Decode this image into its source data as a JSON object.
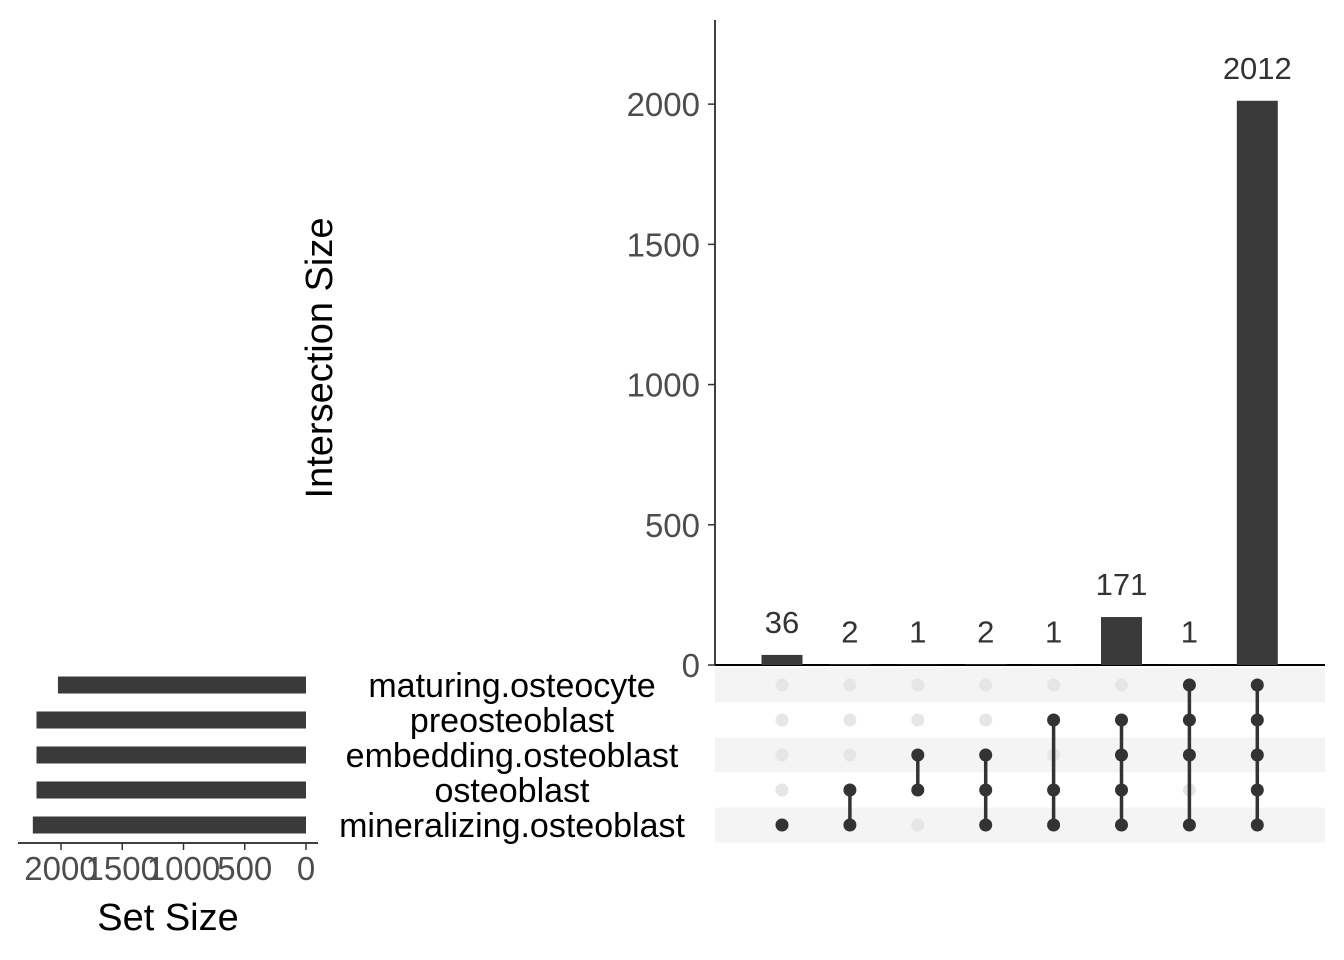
{
  "chart_data": {
    "type": "upset",
    "ylabel": "Intersection Size",
    "yticks": [
      0,
      500,
      1000,
      1500,
      2000
    ],
    "ylim": [
      0,
      2300
    ],
    "sets": [
      "maturing.osteocyte",
      "preosteoblast",
      "embedding.osteoblast",
      "osteoblast",
      "mineralizing.osteoblast"
    ],
    "set_sizes": [
      2025,
      2200,
      2200,
      2200,
      2230
    ],
    "set_size_label": "Set Size",
    "set_size_ticks": [
      2000,
      1500,
      1000,
      500,
      0
    ],
    "set_size_tick_labels": [
      "2000",
      "1500",
      "1000",
      "500",
      "0"
    ],
    "intersections": [
      {
        "value": 36,
        "label": "36",
        "members": [
          "mineralizing.osteoblast"
        ]
      },
      {
        "value": 2,
        "label": "2",
        "members": [
          "osteoblast",
          "mineralizing.osteoblast"
        ]
      },
      {
        "value": 1,
        "label": "1",
        "members": [
          "embedding.osteoblast",
          "osteoblast"
        ]
      },
      {
        "value": 2,
        "label": "2",
        "members": [
          "embedding.osteoblast",
          "osteoblast",
          "mineralizing.osteoblast"
        ]
      },
      {
        "value": 1,
        "label": "1",
        "members": [
          "preosteoblast",
          "osteoblast",
          "mineralizing.osteoblast"
        ]
      },
      {
        "value": 171,
        "label": "171",
        "members": [
          "preosteoblast",
          "embedding.osteoblast",
          "osteoblast",
          "mineralizing.osteoblast"
        ]
      },
      {
        "value": 1,
        "label": "1",
        "members": [
          "maturing.osteocyte",
          "preosteoblast",
          "embedding.osteoblast",
          "mineralizing.osteoblast"
        ]
      },
      {
        "value": 2012,
        "label": "2012",
        "members": [
          "maturing.osteocyte",
          "preosteoblast",
          "embedding.osteoblast",
          "osteoblast",
          "mineralizing.osteoblast"
        ]
      }
    ],
    "colors": {
      "bar": "#3a3a3a",
      "dot_active": "#333333",
      "dot_inactive": "#e6e6e6",
      "stripe": "#f4f4f4",
      "axis_text": "#4d4d4d"
    }
  }
}
